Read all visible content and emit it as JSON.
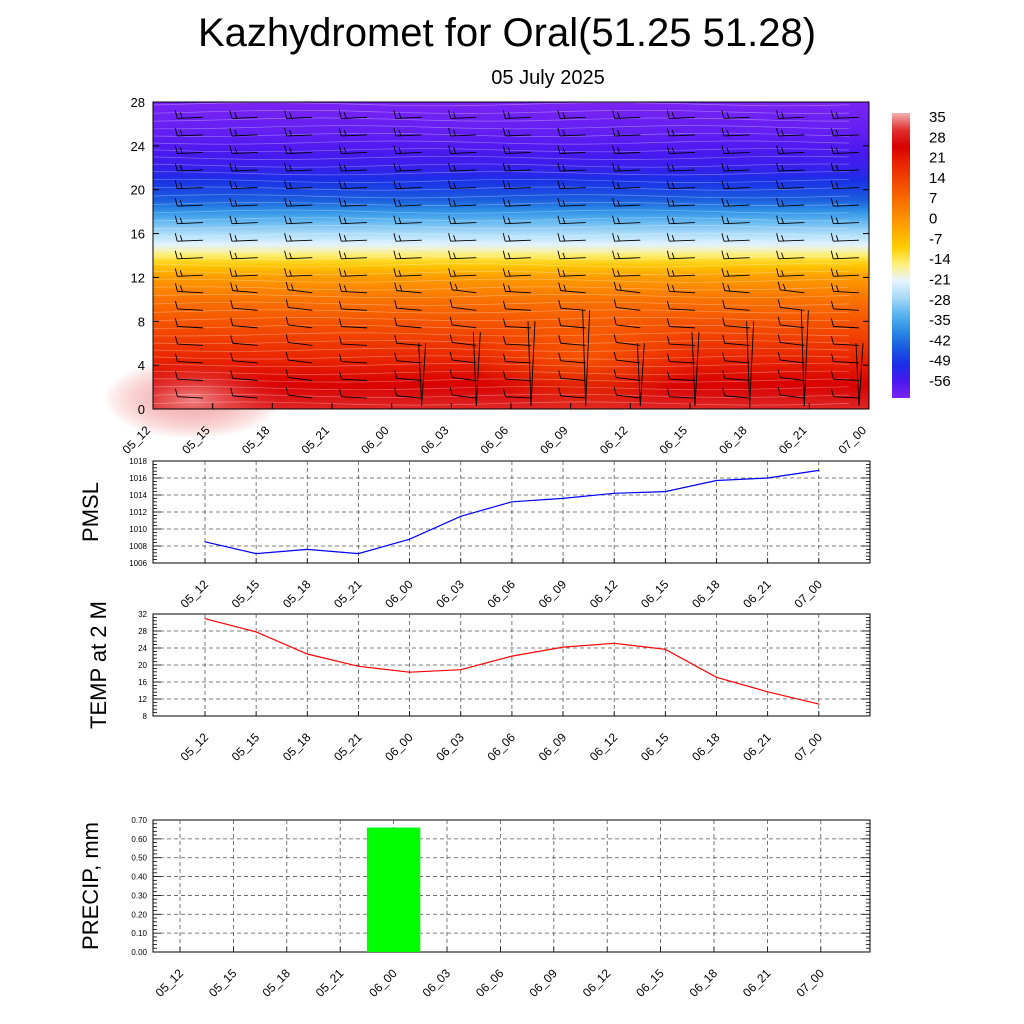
{
  "title": "Kazhydromet for Oral(51.25 51.28)",
  "subtitle": "05 July 2025",
  "colors": {
    "pmsl_line": "#0000ff",
    "temp_line": "#ff0000",
    "precip_bar": "#00ff00",
    "colorbar": [
      "#f3b0b0",
      "#e23030",
      "#d80000",
      "#ea2400",
      "#f24400",
      "#f76600",
      "#fb8800",
      "#ffaa00",
      "#ffcc00",
      "#fff078",
      "#e6f4ff",
      "#a8daf8",
      "#5ab4f0",
      "#2a8ce4",
      "#1a5ae0",
      "#1a2ee8",
      "#4a18f0",
      "#7a24f4"
    ]
  },
  "chart_data": [
    {
      "type": "heatmap",
      "name": "vertical temperature and wind cross-section",
      "x_ticks": [
        "05_12",
        "05_15",
        "05_18",
        "05_21",
        "06_00",
        "06_03",
        "06_06",
        "06_09",
        "06_12",
        "06_15",
        "06_18",
        "06_21",
        "07_00"
      ],
      "y_ticks": [
        0,
        4,
        8,
        12,
        16,
        20,
        24,
        28
      ],
      "ylim": [
        0,
        28
      ],
      "colorbar_labels": [
        "35",
        "28",
        "21",
        "14",
        "7",
        "0",
        "-7",
        "-14",
        "-21",
        "-28",
        "-35",
        "-42",
        "-49",
        "-56"
      ],
      "colorbar_range": [
        -60,
        38
      ],
      "temperature_by_height": [
        [
          0,
          31
        ],
        [
          2,
          27
        ],
        [
          4,
          22
        ],
        [
          6,
          17
        ],
        [
          8,
          12
        ],
        [
          10,
          7
        ],
        [
          12,
          0
        ],
        [
          13.5,
          -10
        ],
        [
          15,
          -20
        ],
        [
          17,
          -30
        ],
        [
          19,
          -42
        ],
        [
          22,
          -52
        ],
        [
          25,
          -57
        ],
        [
          28,
          -60
        ]
      ],
      "wind_barbs": true
    },
    {
      "type": "line",
      "ylabel": "PMSL",
      "x": [
        "05_12",
        "05_15",
        "05_18",
        "05_21",
        "06_00",
        "06_03",
        "06_06",
        "06_09",
        "06_12",
        "06_15",
        "06_18",
        "06_21",
        "07_00"
      ],
      "values": [
        1008.5,
        1007.1,
        1007.6,
        1007.1,
        1008.8,
        1011.5,
        1013.2,
        1013.6,
        1014.2,
        1014.4,
        1015.7,
        1016.0,
        1016.9
      ],
      "ylim": [
        1006,
        1018
      ],
      "y_ticks": [
        "1006",
        "1008",
        "1010",
        "1012",
        "1014",
        "1016",
        "1018"
      ],
      "grid": true
    },
    {
      "type": "line",
      "ylabel": "TEMP at 2 M",
      "x": [
        "05_12",
        "05_15",
        "05_18",
        "05_21",
        "06_00",
        "06_03",
        "06_06",
        "06_09",
        "06_12",
        "06_15",
        "06_18",
        "06_21",
        "07_00"
      ],
      "values": [
        30.9,
        27.8,
        22.6,
        19.7,
        18.3,
        18.9,
        22.1,
        24.2,
        25.1,
        23.7,
        17.1,
        13.7,
        10.8
      ],
      "ylim": [
        8,
        32
      ],
      "y_ticks": [
        "8",
        "12",
        "16",
        "20",
        "24",
        "28",
        "32"
      ],
      "grid": true
    },
    {
      "type": "bar",
      "ylabel": "PRECIP, mm",
      "x": [
        "05_12",
        "05_15",
        "05_18",
        "05_21",
        "06_00",
        "06_03",
        "06_06",
        "06_09",
        "06_12",
        "06_15",
        "06_18",
        "06_21",
        "07_00"
      ],
      "values": [
        0,
        0,
        0,
        0,
        0.66,
        0,
        0,
        0,
        0,
        0,
        0,
        0,
        0
      ],
      "ylim": [
        0,
        0.7
      ],
      "y_ticks": [
        "0.00",
        "0.10",
        "0.20",
        "0.30",
        "0.40",
        "0.50",
        "0.60",
        "0.70"
      ],
      "grid": true
    }
  ]
}
